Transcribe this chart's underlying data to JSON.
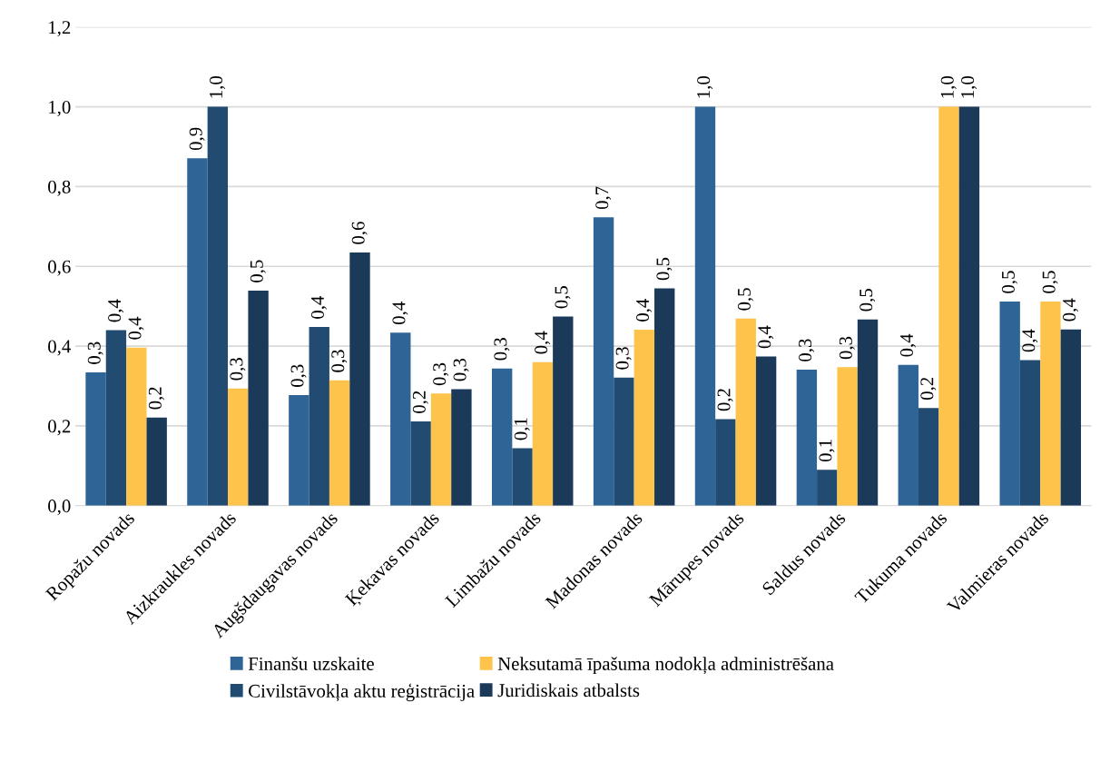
{
  "chart_data": {
    "type": "bar",
    "categories": [
      "Ropažu novads",
      "Aizkraukles novads",
      "Augšdaugavas novads",
      "Ķekavas novads",
      "Limbažu novads",
      "Madonas novads",
      "Mārupes novads",
      "Saldus novads",
      "Tukuma novads",
      "Valmieras novads"
    ],
    "series": [
      {
        "name": "Finanšu uzskaite",
        "color": "#2e6496",
        "values": [
          0.334,
          0.871,
          0.277,
          0.434,
          0.344,
          0.723,
          1.0,
          0.341,
          0.353,
          0.512
        ],
        "value_labels": [
          "0,3",
          "0,9",
          "0,3",
          "0,4",
          "0,3",
          "0,7",
          "1,0",
          "0,3",
          "0,4",
          "0,5"
        ]
      },
      {
        "name": "Civilstāvokļa aktu reģistrācija",
        "color": "#214b70",
        "values": [
          0.44,
          1.0,
          0.448,
          0.211,
          0.144,
          0.321,
          0.217,
          0.09,
          0.245,
          0.365
        ],
        "value_labels": [
          "0,4",
          "1,0",
          "0,4",
          "0,2",
          "0,1",
          "0,3",
          "0,2",
          "0,1",
          "0,2",
          "0,4"
        ]
      },
      {
        "name": "Neksutamā īpašuma nodokļa administrēšana",
        "color": "#fdc34a",
        "values": [
          0.396,
          0.294,
          0.314,
          0.281,
          0.36,
          0.441,
          0.469,
          0.347,
          1.0,
          0.512
        ],
        "value_labels": [
          "0,4",
          "0,3",
          "0,3",
          "0,3",
          "0,4",
          "0,4",
          "0,5",
          "0,3",
          "1,0",
          "0,5"
        ]
      },
      {
        "name": "Juridiskais atbalsts",
        "color": "#1b3a5a",
        "values": [
          0.221,
          0.539,
          0.635,
          0.292,
          0.474,
          0.545,
          0.374,
          0.467,
          1.0,
          0.442
        ],
        "value_labels": [
          "0,2",
          "0,5",
          "0,6",
          "0,3",
          "0,5",
          "0,5",
          "0,4",
          "0,5",
          "1,0",
          "0,4"
        ]
      }
    ],
    "ylim": [
      0,
      1.2
    ],
    "yticks": [
      {
        "value": 0,
        "label": "0,0"
      },
      {
        "value": 0.2,
        "label": "0,2"
      },
      {
        "value": 0.4,
        "label": "0,4"
      },
      {
        "value": 0.6,
        "label": "0,6"
      },
      {
        "value": 0.8,
        "label": "0,8"
      },
      {
        "value": 1.0,
        "label": "1,0"
      },
      {
        "value": 1.2,
        "label": "1,2"
      }
    ],
    "grid": "y",
    "legend": "bottom"
  }
}
